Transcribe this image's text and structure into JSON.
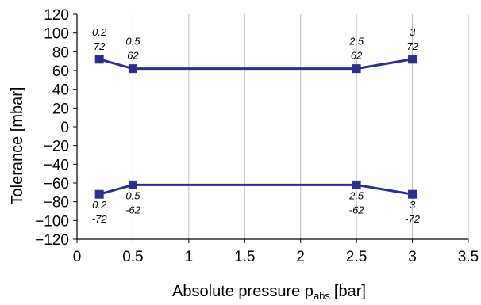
{
  "chart_data": {
    "type": "line",
    "xlabel": "Absolute pressure p",
    "xlabel_sub": "abs",
    "xlabel_unit": "[bar]",
    "ylabel": "Tolerance [mbar]",
    "xlim": [
      0,
      3.5
    ],
    "ylim": [
      -120,
      120
    ],
    "xticks": [
      0,
      0.5,
      1,
      1.5,
      2,
      2.5,
      3,
      3.5
    ],
    "xtick_labels": [
      "0",
      "0.5",
      "1",
      "1.5",
      "2",
      "2.5",
      "3",
      "3.5"
    ],
    "yticks": [
      120,
      100,
      80,
      60,
      40,
      20,
      0,
      -20,
      -40,
      -60,
      -80,
      -100,
      -120
    ],
    "ytick_labels": [
      "120",
      "100",
      "80",
      "60",
      "40",
      "20",
      "0",
      "−20",
      "−40",
      "−60",
      "−80",
      "−100",
      "−120"
    ],
    "grid": "vertical",
    "line_color": "#2e2e8f",
    "series": [
      {
        "points": [
          [
            0.2,
            72
          ],
          [
            0.5,
            62
          ],
          [
            2.5,
            62
          ],
          [
            3,
            72
          ]
        ],
        "labels": [
          [
            "0.2",
            "72"
          ],
          [
            "0.5",
            "62"
          ],
          [
            "2.5",
            "62"
          ],
          [
            "3",
            "72"
          ]
        ]
      },
      {
        "points": [
          [
            0.2,
            -72
          ],
          [
            0.5,
            -62
          ],
          [
            2.5,
            -62
          ],
          [
            3,
            -72
          ]
        ],
        "labels": [
          [
            "0.2",
            "-72"
          ],
          [
            "0.5",
            "-62"
          ],
          [
            "2.5",
            "-62"
          ],
          [
            "3",
            "-72"
          ]
        ]
      }
    ]
  }
}
